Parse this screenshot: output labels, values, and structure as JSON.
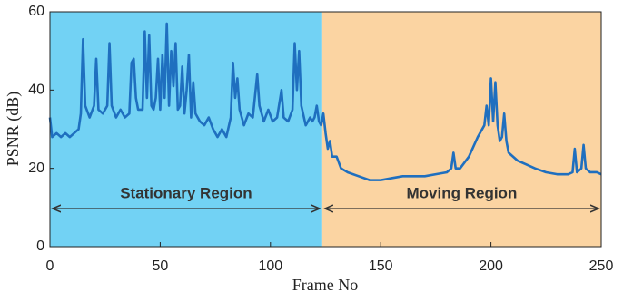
{
  "chart_data": {
    "type": "line",
    "x_label": "Frame No",
    "y_label": "PSNR (dB)",
    "xlim": [
      0,
      250
    ],
    "ylim": [
      0,
      60
    ],
    "xticks": [
      0,
      50,
      100,
      150,
      200,
      250
    ],
    "yticks": [
      0,
      20,
      40,
      60
    ],
    "regions": [
      {
        "label": "Stationary Region",
        "x": [
          0,
          123.5
        ],
        "color": "#72d2f4"
      },
      {
        "label": "Moving Region",
        "x": [
          123.5,
          250
        ],
        "color": "#fbd4a2"
      }
    ],
    "series": [
      {
        "name": "PSNR",
        "color": "#1f6fbf",
        "x": [
          0,
          1,
          3,
          5,
          7,
          9,
          11,
          13,
          14,
          15,
          16,
          18,
          20,
          21,
          22,
          24,
          26,
          27,
          28,
          30,
          32,
          34,
          36,
          37,
          38,
          39,
          40,
          42,
          43,
          44,
          45,
          46,
          47,
          48,
          49,
          50,
          51,
          52,
          53,
          54,
          55,
          56,
          57,
          58,
          59,
          60,
          61,
          62,
          63,
          64,
          65,
          66,
          68,
          70,
          72,
          74,
          76,
          78,
          80,
          82,
          83,
          84,
          85,
          86,
          88,
          90,
          92,
          94,
          95,
          97,
          99,
          101,
          103,
          105,
          106,
          108,
          110,
          111,
          112,
          113,
          114,
          116,
          118,
          119,
          120,
          121,
          122,
          123,
          124,
          125,
          126,
          127,
          128,
          130,
          132,
          135,
          140,
          145,
          150,
          155,
          160,
          165,
          170,
          175,
          180,
          182,
          183,
          184,
          186,
          190,
          194,
          197,
          198,
          199,
          200,
          201,
          202,
          203,
          204,
          205,
          206,
          207,
          208,
          212,
          216,
          220,
          225,
          230,
          235,
          237,
          238,
          239,
          241,
          242,
          243,
          245,
          248,
          250
        ],
        "values": [
          33,
          28,
          29,
          28,
          29,
          28,
          29,
          30,
          34,
          53,
          36,
          33,
          36,
          48,
          35,
          34,
          36,
          52,
          36,
          33,
          35,
          33,
          34,
          47,
          48,
          38,
          35,
          35,
          55,
          38,
          54,
          36,
          35,
          38,
          48,
          35,
          49,
          38,
          57,
          36,
          50,
          41,
          52,
          35,
          36,
          46,
          34,
          40,
          49,
          33,
          42,
          34,
          32,
          31,
          33,
          30,
          28,
          30,
          28,
          33,
          47,
          38,
          43,
          35,
          31,
          34,
          33,
          44,
          36,
          32,
          35,
          32,
          33,
          40,
          33,
          32,
          35,
          52,
          40,
          50,
          36,
          31,
          33,
          32,
          33,
          36,
          32,
          31,
          34,
          29,
          25,
          27,
          23,
          23,
          20,
          19,
          18,
          17,
          17,
          17.5,
          18,
          18,
          18,
          18.5,
          19,
          20,
          24,
          20,
          20,
          23,
          28,
          31,
          36,
          31,
          43,
          32,
          42,
          31,
          27,
          28,
          34,
          27,
          24,
          22,
          21,
          20,
          19,
          18.5,
          18.5,
          19,
          25,
          19,
          20,
          26,
          20,
          19,
          19,
          18.5
        ]
      }
    ]
  }
}
